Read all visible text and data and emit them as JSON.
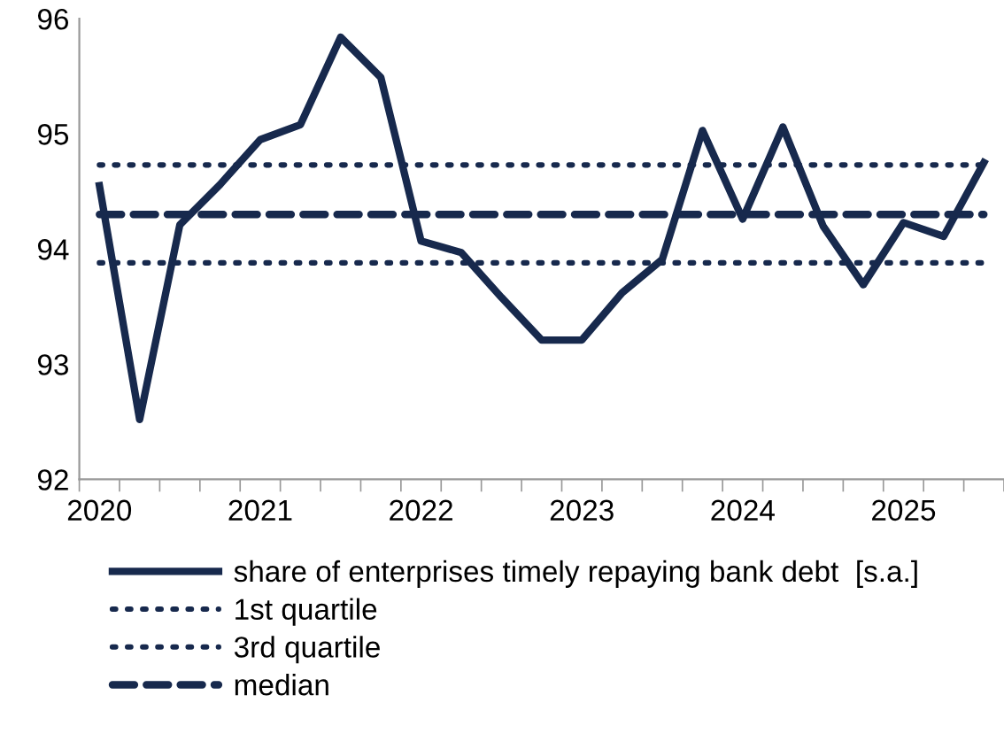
{
  "chart_data": {
    "type": "line",
    "categories": [
      "2020",
      null,
      null,
      null,
      "2021",
      null,
      null,
      null,
      "2022",
      null,
      null,
      null,
      "2023",
      null,
      null,
      null,
      "2024",
      null,
      null,
      null,
      "2025",
      null,
      null
    ],
    "series": [
      {
        "name": "share of enterprises timely repaying bank debt  [s.a.]",
        "color": "#17294d",
        "values": [
          94.55,
          92.52,
          94.21,
          94.56,
          94.95,
          95.08,
          95.84,
          95.49,
          94.07,
          93.97,
          93.58,
          93.21,
          93.21,
          93.62,
          93.91,
          95.03,
          94.26,
          95.06,
          94.2,
          93.69,
          94.23,
          94.11,
          94.75
        ]
      }
    ],
    "ref_lines": [
      {
        "axis": "y",
        "value": 93.88,
        "label": "1st quartile",
        "color": "#17294d",
        "line_style": "dotted"
      },
      {
        "axis": "y",
        "value": 94.73,
        "label": "3rd quartile",
        "color": "#17294d",
        "line_style": "dotted"
      },
      {
        "axis": "y",
        "value": 94.3,
        "label": "median",
        "color": "#17294d",
        "line_style": "dashed"
      }
    ],
    "ylim": [
      92,
      96
    ],
    "yticks": [
      92,
      93,
      94,
      95,
      96
    ],
    "grid": false,
    "legend": "bottom",
    "marker": "none",
    "line_style": "solid"
  }
}
